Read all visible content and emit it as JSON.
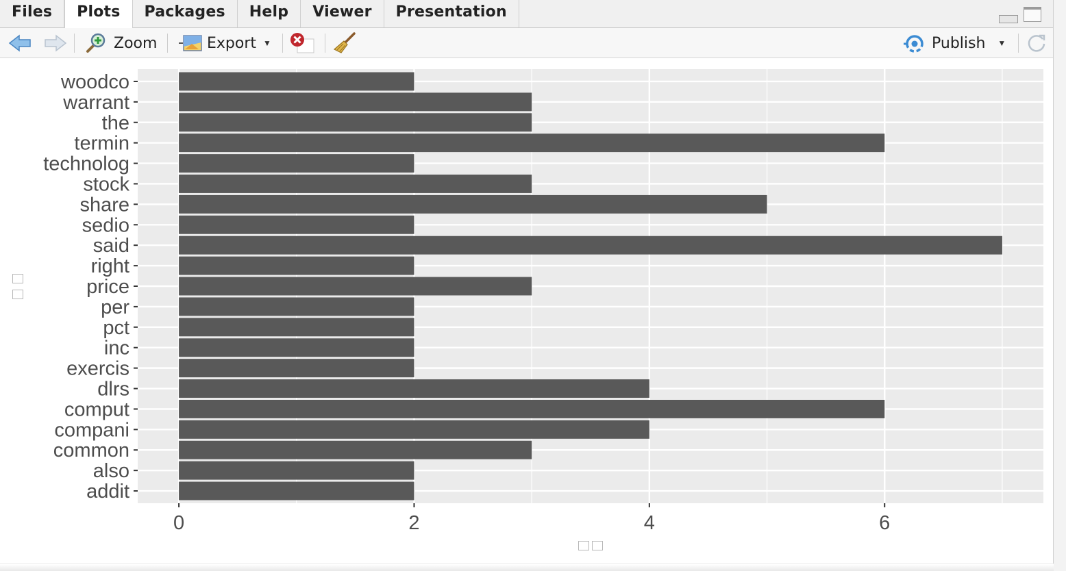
{
  "tabs": [
    {
      "label": "Files",
      "active": false
    },
    {
      "label": "Plots",
      "active": true
    },
    {
      "label": "Packages",
      "active": false
    },
    {
      "label": "Help",
      "active": false
    },
    {
      "label": "Viewer",
      "active": false
    },
    {
      "label": "Presentation",
      "active": false
    }
  ],
  "toolbar": {
    "zoom_label": "Zoom",
    "export_label": "Export",
    "publish_label": "Publish",
    "icons": [
      "back-arrow-icon",
      "forward-arrow-icon",
      "zoom-icon",
      "export-icon",
      "remove-plot-icon",
      "broom-icon",
      "publish-icon",
      "refresh-icon"
    ]
  },
  "colors": {
    "panel_background": "#ebebeb",
    "bar_fill": "#595959",
    "gridline": "#ffffff",
    "publish_accent": "#3b8bd3"
  },
  "chart_data": {
    "type": "bar",
    "orientation": "horizontal",
    "categories": [
      "addit",
      "also",
      "common",
      "compani",
      "comput",
      "dlrs",
      "exercis",
      "inc",
      "pct",
      "per",
      "price",
      "right",
      "said",
      "sedio",
      "share",
      "stock",
      "technolog",
      "termin",
      "the",
      "warrant",
      "woodco"
    ],
    "values": [
      2,
      2,
      3,
      4,
      6,
      4,
      2,
      2,
      2,
      2,
      3,
      2,
      7,
      2,
      5,
      3,
      2,
      6,
      3,
      3,
      2
    ],
    "x_ticks": [
      0,
      2,
      4,
      6
    ],
    "xlim": [
      -0.35,
      7.35
    ],
    "xlabel": "",
    "ylabel": "",
    "grid": true
  }
}
